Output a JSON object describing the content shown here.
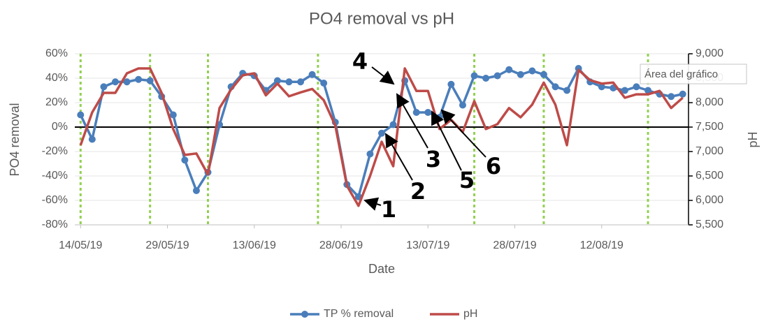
{
  "chart_data": {
    "type": "line",
    "title": "PO4 removal vs pH",
    "x_label": "Date",
    "y_label": "PO4 removal",
    "y2_label": "pH",
    "x": [
      "2019-05-14",
      "2019-05-16",
      "2019-05-18",
      "2019-05-20",
      "2019-05-22",
      "2019-05-24",
      "2019-05-26",
      "2019-05-28",
      "2019-05-30",
      "2019-06-01",
      "2019-06-03",
      "2019-06-05",
      "2019-06-07",
      "2019-06-09",
      "2019-06-11",
      "2019-06-13",
      "2019-06-15",
      "2019-06-17",
      "2019-06-19",
      "2019-06-21",
      "2019-06-23",
      "2019-06-25",
      "2019-06-27",
      "2019-06-29",
      "2019-07-01",
      "2019-07-03",
      "2019-07-05",
      "2019-07-07",
      "2019-07-09",
      "2019-07-11",
      "2019-07-13",
      "2019-07-15",
      "2019-07-17",
      "2019-07-19",
      "2019-07-21",
      "2019-07-23",
      "2019-07-25",
      "2019-07-27",
      "2019-07-29",
      "2019-07-31",
      "2019-08-02",
      "2019-08-04",
      "2019-08-06",
      "2019-08-08",
      "2019-08-10",
      "2019-08-12",
      "2019-08-14",
      "2019-08-16",
      "2019-08-18",
      "2019-08-20",
      "2019-08-22",
      "2019-08-24",
      "2019-08-26"
    ],
    "series": [
      {
        "name": "TP % removal",
        "color": "#4a7ebb",
        "axis": "y",
        "values": [
          10,
          -10,
          33,
          37,
          37,
          39,
          38,
          25,
          10,
          -27,
          -52,
          -37,
          2,
          33,
          44,
          42,
          30,
          38,
          37,
          37,
          43,
          36,
          4,
          -47,
          -57,
          -22,
          -5,
          2,
          38,
          12,
          12,
          8,
          35,
          18,
          42,
          40,
          42,
          47,
          43,
          46,
          43,
          33,
          30,
          48,
          37,
          33,
          32,
          30,
          33,
          30,
          27,
          25,
          27
        ]
      },
      {
        "name": "pH",
        "color": "#be4b48",
        "axis": "y2",
        "values": [
          7130,
          7800,
          8200,
          8200,
          8600,
          8700,
          8700,
          8200,
          7460,
          6930,
          6960,
          6530,
          7890,
          8270,
          8560,
          8600,
          8150,
          8390,
          8130,
          8210,
          8280,
          8050,
          7530,
          6300,
          5890,
          6500,
          7200,
          6700,
          8700,
          8240,
          8240,
          7460,
          7650,
          7400,
          8030,
          7460,
          7560,
          7890,
          7700,
          7960,
          8410,
          7960,
          7130,
          8670,
          8460,
          8390,
          8410,
          8100,
          8170,
          8170,
          8240,
          7890,
          8100
        ]
      }
    ],
    "xlim": [
      "2019-05-13",
      "2019-08-27"
    ],
    "xticks": [
      {
        "value": "2019-05-14",
        "label": "14/05/19"
      },
      {
        "value": "2019-05-29",
        "label": "29/05/19"
      },
      {
        "value": "2019-06-13",
        "label": "13/06/19"
      },
      {
        "value": "2019-06-28",
        "label": "28/06/19"
      },
      {
        "value": "2019-07-13",
        "label": "13/07/19"
      },
      {
        "value": "2019-07-28",
        "label": "28/07/19"
      },
      {
        "value": "2019-08-12",
        "label": "12/08/19"
      }
    ],
    "ylim": [
      -80,
      60
    ],
    "yticks": [
      {
        "value": -80,
        "label": "-80%"
      },
      {
        "value": -60,
        "label": "-60%"
      },
      {
        "value": -40,
        "label": "-40%"
      },
      {
        "value": -20,
        "label": "-20%"
      },
      {
        "value": 0,
        "label": "0%"
      },
      {
        "value": 20,
        "label": "20%"
      },
      {
        "value": 40,
        "label": "40%"
      },
      {
        "value": 60,
        "label": "60%"
      }
    ],
    "y2lim": [
      5500,
      9000
    ],
    "y2ticks": [
      {
        "value": 5500,
        "label": "5,500"
      },
      {
        "value": 6000,
        "label": "6,000"
      },
      {
        "value": 6500,
        "label": "6,500"
      },
      {
        "value": 7000,
        "label": "7,000"
      },
      {
        "value": 7500,
        "label": "7,500"
      },
      {
        "value": 8000,
        "label": "8,000"
      },
      {
        "value": 8500,
        "label": "8,500"
      },
      {
        "value": 9000,
        "label": "9,000"
      }
    ],
    "grid": true,
    "legend": "bottom",
    "vlines": {
      "color": "#92d050",
      "x": [
        "2019-05-14",
        "2019-05-26",
        "2019-06-05",
        "2019-06-24",
        "2019-07-21",
        "2019-08-02",
        "2019-08-20"
      ]
    },
    "annotations": [
      "1",
      "2",
      "3",
      "4",
      "5",
      "6"
    ],
    "tooltip": "Área del gráfico"
  }
}
